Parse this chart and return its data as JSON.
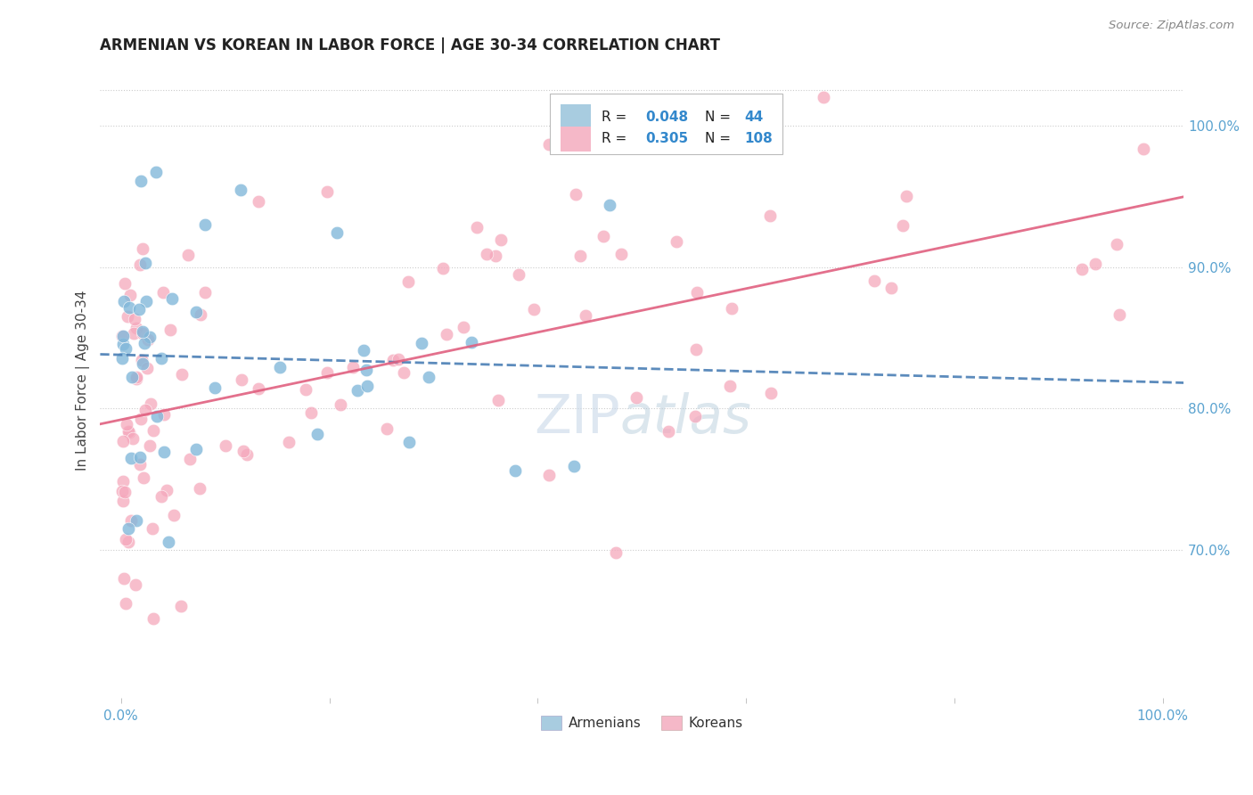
{
  "title": "ARMENIAN VS KOREAN IN LABOR FORCE | AGE 30-34 CORRELATION CHART",
  "source": "Source: ZipAtlas.com",
  "ylabel": "In Labor Force | Age 30-34",
  "armenian_R": 0.048,
  "armenian_N": 44,
  "korean_R": 0.305,
  "korean_N": 108,
  "armenian_color": "#82b8da",
  "korean_color": "#f5a8bc",
  "armenian_line_color": "#4a7fb5",
  "korean_line_color": "#e06080",
  "legend_box_armenian": "#a8cce0",
  "legend_box_korean": "#f5b8c8",
  "watermark_color": "#c8d8e8",
  "grid_color": "#cccccc",
  "tick_color": "#5ba3d0",
  "title_color": "#222222",
  "ylabel_color": "#444444",
  "source_color": "#888888"
}
